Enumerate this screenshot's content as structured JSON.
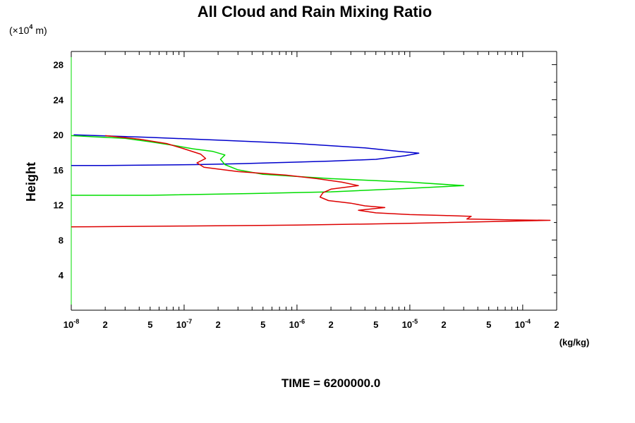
{
  "chart_data": {
    "type": "line",
    "title": "All Cloud and Rain Mixing Ratio",
    "ylabel": "Height",
    "y_unit": "(×10⁴ m)",
    "y_unit_parts": {
      "prefix": "(×10",
      "exponent": "4",
      "suffix": " m)"
    },
    "xlabel": "(kg/kg)",
    "x_scale": "log",
    "xlim": [
      1e-08,
      0.0002
    ],
    "ylim": [
      0,
      29.5
    ],
    "y_ticks": [
      4,
      8,
      12,
      16,
      20,
      24,
      28
    ],
    "x_tick_labels": [
      {
        "value": 1e-08,
        "base": "10",
        "exp": "-8"
      },
      {
        "value": 2e-08,
        "base": "2"
      },
      {
        "value": 5e-08,
        "base": "5"
      },
      {
        "value": 1e-07,
        "base": "10",
        "exp": "-7"
      },
      {
        "value": 2e-07,
        "base": "2"
      },
      {
        "value": 5e-07,
        "base": "5"
      },
      {
        "value": 1e-06,
        "base": "10",
        "exp": "-6"
      },
      {
        "value": 2e-06,
        "base": "2"
      },
      {
        "value": 5e-06,
        "base": "5"
      },
      {
        "value": 1e-05,
        "base": "10",
        "exp": "-5"
      },
      {
        "value": 2e-05,
        "base": "2"
      },
      {
        "value": 5e-05,
        "base": "5"
      },
      {
        "value": 0.0001,
        "base": "10",
        "exp": "-4"
      },
      {
        "value": 0.0002,
        "base": "2"
      }
    ],
    "series": [
      {
        "color": "#0000cc",
        "points": [
          [
            1.05e-08,
            20.0
          ],
          [
            5e-08,
            19.7
          ],
          [
            2e-07,
            19.4
          ],
          [
            1e-06,
            19.0
          ],
          [
            4e-06,
            18.5
          ],
          [
            8e-06,
            18.1
          ],
          [
            1.2e-05,
            17.9
          ],
          [
            9e-06,
            17.6
          ],
          [
            5e-06,
            17.2
          ],
          [
            2e-06,
            17.0
          ],
          [
            8e-07,
            16.85
          ],
          [
            3e-07,
            16.7
          ],
          [
            1.25e-07,
            16.6
          ],
          [
            2e-08,
            16.5
          ],
          [
            1e-08,
            16.5
          ]
        ]
      },
      {
        "color": "#00dd00",
        "points": [
          [
            1e-08,
            19.9
          ],
          [
            3e-08,
            19.6
          ],
          [
            5e-08,
            19.2
          ],
          [
            8e-08,
            18.8
          ],
          [
            1.2e-07,
            18.4
          ],
          [
            1.8e-07,
            18.1
          ],
          [
            2.3e-07,
            17.7
          ],
          [
            2.1e-07,
            17.2
          ],
          [
            2.3e-07,
            16.6
          ],
          [
            3e-07,
            16.0
          ],
          [
            5e-07,
            15.5
          ],
          [
            2e-06,
            15.0
          ],
          [
            1e-05,
            14.6
          ],
          [
            3e-05,
            14.2
          ],
          [
            1e-05,
            13.9
          ],
          [
            2e-06,
            13.5
          ],
          [
            4e-07,
            13.3
          ],
          [
            5e-08,
            13.1
          ],
          [
            1e-08,
            13.1
          ]
        ]
      },
      {
        "color": "#dd0000",
        "points": [
          [
            2e-08,
            19.9
          ],
          [
            4e-08,
            19.5
          ],
          [
            7e-08,
            19.0
          ],
          [
            1e-07,
            18.4
          ],
          [
            1.4e-07,
            17.8
          ],
          [
            1.55e-07,
            17.3
          ],
          [
            1.3e-07,
            16.8
          ],
          [
            1.5e-07,
            16.3
          ],
          [
            3e-07,
            15.8
          ],
          [
            8e-07,
            15.4
          ],
          [
            1.5e-06,
            15.0
          ],
          [
            2.5e-06,
            14.6
          ],
          [
            3.5e-06,
            14.2
          ],
          [
            2e-06,
            13.8
          ],
          [
            1.7e-06,
            13.4
          ],
          [
            1.6e-06,
            12.9
          ],
          [
            1.9e-06,
            12.5
          ],
          [
            3e-06,
            12.2
          ],
          [
            4e-06,
            11.9
          ],
          [
            6e-06,
            11.7
          ],
          [
            3.5e-06,
            11.4
          ],
          [
            5e-06,
            11.1
          ],
          [
            1e-05,
            10.9
          ],
          [
            2e-05,
            10.8
          ],
          [
            3.5e-05,
            10.7
          ],
          [
            3.2e-05,
            10.4
          ],
          [
            8e-05,
            10.3
          ],
          [
            0.000175,
            10.25
          ],
          [
            1e-05,
            9.9
          ],
          [
            1e-06,
            9.7
          ],
          [
            1e-07,
            9.6
          ],
          [
            1e-08,
            9.5
          ]
        ]
      }
    ]
  },
  "footer": "TIME = 6200000.0"
}
